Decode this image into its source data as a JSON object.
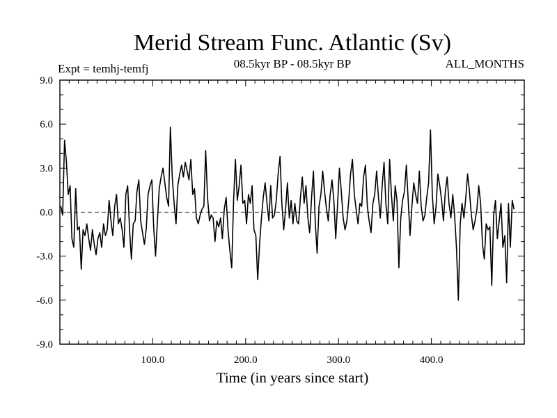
{
  "chart_data": {
    "type": "line",
    "title": "Merid Stream Func. Atlantic (Sv)",
    "subtitle": "08.5kyr BP - 08.5kyr BP",
    "left_label": "Expt = temhj-temfj",
    "right_label": "ALL_MONTHS",
    "xlabel": "Time (in years since start)",
    "ylabel": "",
    "xlim": [
      0,
      500
    ],
    "ylim": [
      -9,
      9
    ],
    "x_ticks": [
      100,
      200,
      300,
      400
    ],
    "x_tick_labels": [
      "100.0",
      "200.0",
      "300.0",
      "400.0"
    ],
    "y_ticks": [
      -9,
      -6,
      -3,
      0,
      3,
      6,
      9
    ],
    "y_tick_labels": [
      "-9.0",
      "-6.0",
      "-3.0",
      "0.0",
      "3.0",
      "6.0",
      "9.0"
    ],
    "zero_line": true,
    "series": [
      {
        "name": "temhj-temfj",
        "x_start": 1,
        "x_step": 2,
        "values": [
          0.4,
          -0.2,
          4.9,
          3.5,
          1.2,
          1.8,
          -1.8,
          -2.4,
          1.6,
          -1.2,
          -1.0,
          -3.9,
          -1.2,
          -1.6,
          -0.8,
          -1.8,
          -2.6,
          -1.2,
          -2.2,
          -2.9,
          -1.8,
          -1.4,
          -2.4,
          -0.8,
          -1.6,
          -1.2,
          0.8,
          -0.6,
          -1.6,
          0.4,
          1.2,
          -0.8,
          -0.4,
          -1.2,
          -2.4,
          1.2,
          1.8,
          -1.2,
          -3.2,
          -0.8,
          -0.6,
          1.4,
          2.2,
          -0.6,
          -1.4,
          -2.2,
          -1.1,
          1.2,
          1.8,
          2.2,
          -1.0,
          -3.0,
          -0.6,
          1.6,
          2.4,
          3.0,
          2.0,
          1.0,
          0.4,
          5.8,
          2.4,
          0.6,
          -0.8,
          1.8,
          2.6,
          3.2,
          2.4,
          3.4,
          2.8,
          2.2,
          3.6,
          1.2,
          1.6,
          -0.4,
          -0.8,
          -0.2,
          0.2,
          0.4,
          4.2,
          1.0,
          -0.6,
          -0.2,
          -0.4,
          -2.0,
          -0.6,
          -1.0,
          -0.4,
          -1.8,
          0.2,
          1.0,
          -1.2,
          -2.6,
          -3.8,
          0.8,
          3.6,
          0.8,
          1.8,
          3.2,
          0.6,
          0.8,
          -0.8,
          1.2,
          0.6,
          1.8,
          -1.2,
          -1.6,
          -4.6,
          -2.2,
          -0.4,
          1.0,
          2.0,
          0.6,
          -0.6,
          1.8,
          -0.4,
          -0.2,
          0.8,
          2.6,
          3.8,
          0.6,
          -1.2,
          0.2,
          2.0,
          -0.4,
          0.8,
          -0.8,
          0.6,
          -0.6,
          -0.8,
          1.0,
          2.4,
          0.6,
          1.8,
          -0.4,
          -1.4,
          1.0,
          2.8,
          -0.8,
          -2.8,
          0.4,
          1.2,
          2.8,
          1.4,
          0.2,
          -0.6,
          1.2,
          2.2,
          0.8,
          -1.8,
          0.6,
          3.0,
          1.4,
          -0.4,
          -1.2,
          -0.6,
          0.8,
          2.6,
          3.6,
          1.2,
          0.2,
          -0.8,
          0.6,
          0.4,
          2.4,
          3.2,
          0.4,
          -0.6,
          -1.4,
          0.6,
          1.2,
          2.8,
          1.0,
          -0.4,
          1.8,
          3.4,
          0.6,
          -0.8,
          3.6,
          1.2,
          -0.6,
          1.8,
          0.8,
          -3.8,
          -0.4,
          0.8,
          1.4,
          3.2,
          0.8,
          -1.6,
          0.4,
          2.0,
          1.2,
          0.6,
          2.8,
          0.4,
          -0.6,
          -0.2,
          1.0,
          2.0,
          5.6,
          1.2,
          -0.8,
          0.4,
          2.6,
          1.8,
          0.8,
          -0.6,
          1.4,
          2.4,
          0.6,
          -0.4,
          1.2,
          -0.2,
          -2.4,
          -6.0,
          -0.8,
          0.6,
          -0.4,
          1.0,
          2.6,
          1.4,
          -0.2,
          -1.2,
          -0.6,
          0.2,
          1.8,
          0.6,
          -2.2,
          -3.2,
          -0.8,
          -1.2,
          -1.0,
          -5.0,
          -0.2,
          0.8,
          -1.8,
          -0.6,
          0.6,
          -2.4,
          -1.6,
          -4.8,
          0.6,
          -2.4,
          0.8,
          0.2
        ]
      }
    ]
  }
}
